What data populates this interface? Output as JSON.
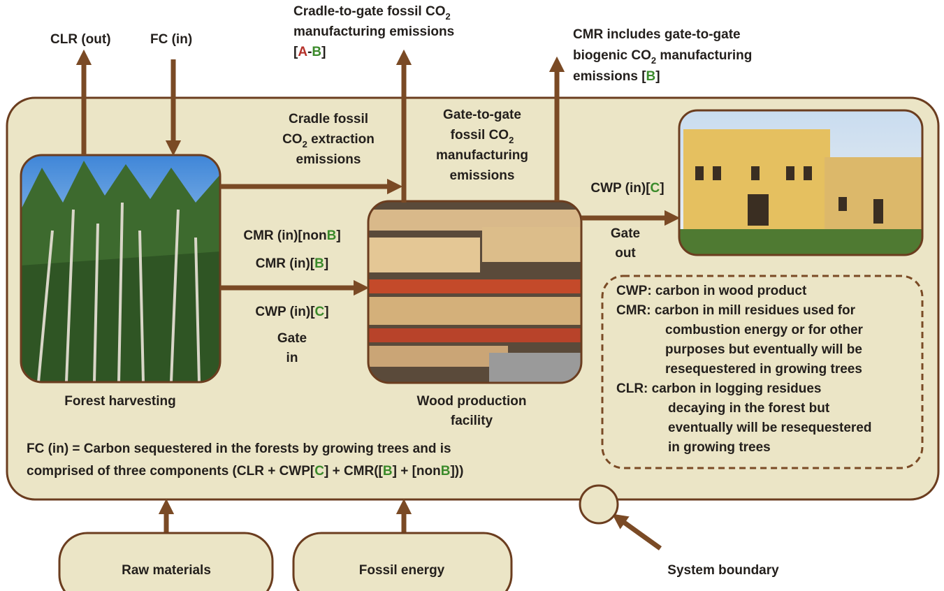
{
  "labels": [
    {
      "lines": [
        [
          "CLR (out)"
        ]
      ]
    },
    {
      "lines": [
        [
          "FC (in)"
        ]
      ]
    },
    {
      "lines": [
        [
          "Cradle-to-gate fossil CO",
          {
            "text": "2",
            "sub": true
          }
        ],
        [
          "manufacturing emissions"
        ],
        [
          "[",
          {
            "text": "A",
            "color": "#b5312a"
          },
          "-",
          {
            "text": "B",
            "color": "#3a8a2a"
          },
          "]"
        ]
      ]
    },
    {
      "lines": [
        [
          "CMR includes gate-to-gate"
        ],
        [
          "biogenic CO",
          {
            "text": "2",
            "sub": true
          },
          " manufacturing"
        ],
        [
          "emissions [",
          {
            "text": "B",
            "color": "#3a8a2a"
          },
          "]"
        ]
      ]
    },
    {
      "lines": [
        [
          "Cradle fossil"
        ],
        [
          "CO",
          {
            "text": "2",
            "sub": true
          },
          " extraction"
        ],
        [
          "emissions"
        ]
      ]
    },
    {
      "lines": [
        [
          "Gate-to-gate"
        ],
        [
          "fossil CO",
          {
            "text": "2",
            "sub": true
          }
        ],
        [
          "manufacturing"
        ],
        [
          "emissions"
        ]
      ]
    },
    {
      "lines": [
        [
          "CWP (in)[",
          {
            "text": "C",
            "color": "#3a8a2a"
          },
          "]"
        ]
      ]
    },
    {
      "lines": [
        [
          "Gate"
        ],
        [
          "out"
        ]
      ]
    },
    {
      "lines": [
        [
          "CMR (in)[non",
          {
            "text": "B",
            "color": "#3a8a2a"
          },
          "]"
        ]
      ]
    },
    {
      "lines": [
        [
          "CMR (in)[",
          {
            "text": "B",
            "color": "#3a8a2a"
          },
          "]"
        ]
      ]
    },
    {
      "lines": [
        [
          "CWP (in)[",
          {
            "text": "C",
            "color": "#3a8a2a"
          },
          "]"
        ]
      ]
    },
    {
      "lines": [
        [
          "Gate"
        ],
        [
          "in"
        ]
      ]
    },
    {
      "lines": [
        [
          "Forest harvesting"
        ]
      ]
    },
    {
      "lines": [
        [
          "Wood production"
        ],
        [
          "facility"
        ]
      ]
    },
    {
      "lines": [
        [
          "FC (in) = Carbon sequestered in the forests by growing trees and is"
        ],
        [
          "comprised of three components (CLR + CWP[",
          {
            "text": "C",
            "color": "#3a8a2a"
          },
          "] + CMR([",
          {
            "text": "B",
            "color": "#3a8a2a"
          },
          "] + [non",
          {
            "text": "B",
            "color": "#3a8a2a"
          },
          "]))"
        ]
      ]
    },
    {
      "lines": [
        [
          "CWP: carbon in wood product"
        ],
        [
          "CMR: carbon in mill residues used for"
        ],
        [
          "combustion energy or for other"
        ],
        [
          "purposes but eventually will be"
        ],
        [
          "resequestered in growing trees"
        ],
        [
          "CLR: carbon in logging residues"
        ],
        [
          "decaying in the forest but"
        ],
        [
          "eventually will be resequestered"
        ],
        [
          "in growing trees"
        ]
      ]
    },
    {
      "lines": [
        [
          "Raw materials"
        ]
      ]
    },
    {
      "lines": [
        [
          "Fossil energy"
        ]
      ]
    },
    {
      "lines": [
        [
          "System boundary"
        ]
      ]
    }
  ]
}
